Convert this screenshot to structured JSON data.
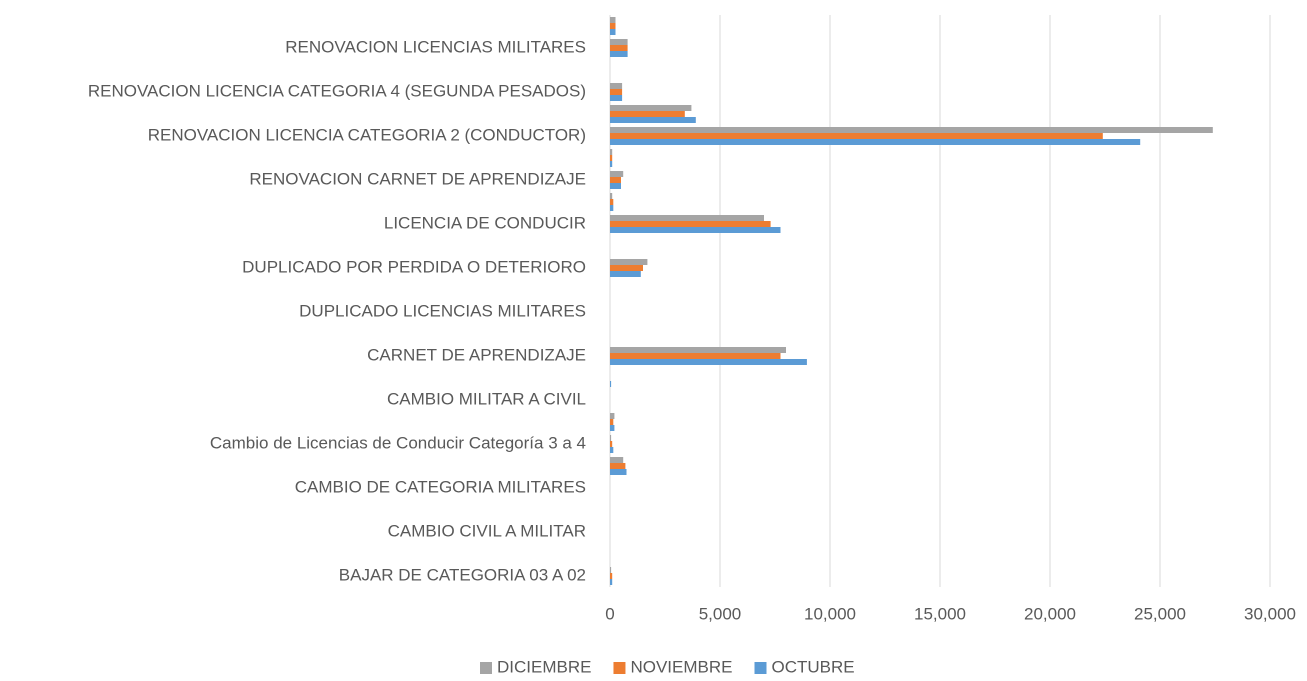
{
  "chart_data": {
    "type": "bar",
    "orientation": "horizontal",
    "categories": [
      "BAJAR  DE CATEGORIA  03 A 02",
      null,
      "CAMBIO CIVIL A MILITAR",
      null,
      "CAMBIO DE CATEGORIA MILITARES",
      null,
      "Cambio de Licencias de Conducir Categoría 3 a 4",
      null,
      "CAMBIO MILITAR A CIVIL",
      null,
      "CARNET DE APRENDIZAJE",
      null,
      "DUPLICADO LICENCIAS MILITARES",
      null,
      "DUPLICADO POR PERDIDA O DETERIORO",
      null,
      "LICENCIA DE CONDUCIR",
      null,
      "RENOVACION CARNET DE APRENDIZAJE",
      null,
      "RENOVACION LICENCIA CATEGORIA 2 (CONDUCTOR)",
      null,
      "RENOVACION LICENCIA CATEGORIA 4 (SEGUNDA PESADOS)",
      null,
      "RENOVACION LICENCIAS MILITARES",
      null
    ],
    "series": [
      {
        "name": "OCTUBRE",
        "color": "#5b9bd5",
        "values": [
          100,
          0,
          0,
          0,
          0,
          750,
          150,
          200,
          0,
          50,
          8950,
          0,
          0,
          0,
          1400,
          0,
          7750,
          150,
          500,
          100,
          24100,
          3900,
          550,
          0,
          800,
          250
        ]
      },
      {
        "name": "NOVIEMBRE",
        "color": "#ed7d31",
        "values": [
          100,
          0,
          0,
          0,
          0,
          700,
          100,
          150,
          0,
          0,
          7750,
          0,
          0,
          0,
          1500,
          0,
          7300,
          150,
          500,
          100,
          22400,
          3400,
          550,
          0,
          800,
          250
        ]
      },
      {
        "name": "DICIEMBRE",
        "color": "#a5a5a5",
        "values": [
          50,
          0,
          0,
          0,
          0,
          600,
          50,
          200,
          0,
          0,
          8000,
          0,
          0,
          0,
          1700,
          0,
          7000,
          100,
          600,
          100,
          27400,
          3700,
          550,
          0,
          800,
          250
        ]
      }
    ],
    "xlim": [
      0,
      30000
    ],
    "xticks": [
      0,
      {
        "value": 5000,
        "label": "5,000"
      },
      {
        "value": 10000,
        "label": "10,000"
      },
      {
        "value": 15000,
        "label": "15,000"
      },
      {
        "value": 20000,
        "label": "20,000"
      },
      {
        "value": 25000,
        "label": "25,000"
      },
      {
        "value": 30000,
        "label": "30,000"
      }
    ],
    "grid": true,
    "legend": "bottom"
  }
}
